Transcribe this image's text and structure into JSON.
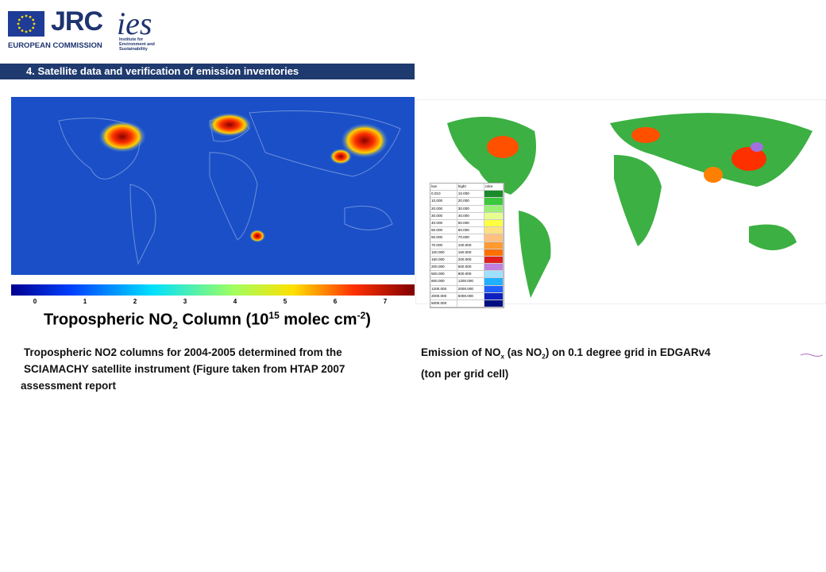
{
  "header": {
    "logo_jrc": "JRC",
    "logo_commission": "EUROPEAN COMMISSION",
    "logo_ies": "ies",
    "logo_ies_sub": [
      "Institute for",
      "Environment and",
      "Sustainability"
    ],
    "section_title": "4. Satellite data and verification of emission inventories"
  },
  "left_figure": {
    "colorbar_ticks": [
      "0",
      "1",
      "2",
      "3",
      "4",
      "5",
      "6",
      "7"
    ],
    "colorbar_label": [
      "Tropospheric NO",
      "2",
      " Column (10",
      "15",
      " molec cm",
      "-2",
      ")"
    ],
    "caption": [
      "Tropospheric NO2 columns for 2004-2005 determined from the",
      "SCIAMACHY satellite instrument (Figure taken from HTAP 2007",
      "assessment report"
    ]
  },
  "right_figure": {
    "legend": {
      "header": [
        "low",
        "hight",
        "color"
      ],
      "rows": [
        [
          "0.010",
          "10.000"
        ],
        [
          "10.000",
          "20.000"
        ],
        [
          "20.000",
          "30.000"
        ],
        [
          "30.000",
          "40.000"
        ],
        [
          "40.000",
          "50.000"
        ],
        [
          "50.000",
          "60.000"
        ],
        [
          "60.000",
          "70.000"
        ],
        [
          "70.000",
          "100.000"
        ],
        [
          "100.000",
          "150.000"
        ],
        [
          "150.000",
          "200.000"
        ],
        [
          "200.000",
          "500.000"
        ],
        [
          "500.000",
          "800.000"
        ],
        [
          "800.000",
          "1200.000"
        ],
        [
          "1200.000",
          "2000.000"
        ],
        [
          "2000.000",
          "5000.000"
        ],
        [
          "5000.000",
          null
        ]
      ]
    },
    "caption": [
      "Emission of NO",
      "x",
      " (as NO",
      "2",
      ") on 0.1 degree grid in EDGARv4",
      "(ton per grid cell)"
    ]
  }
}
